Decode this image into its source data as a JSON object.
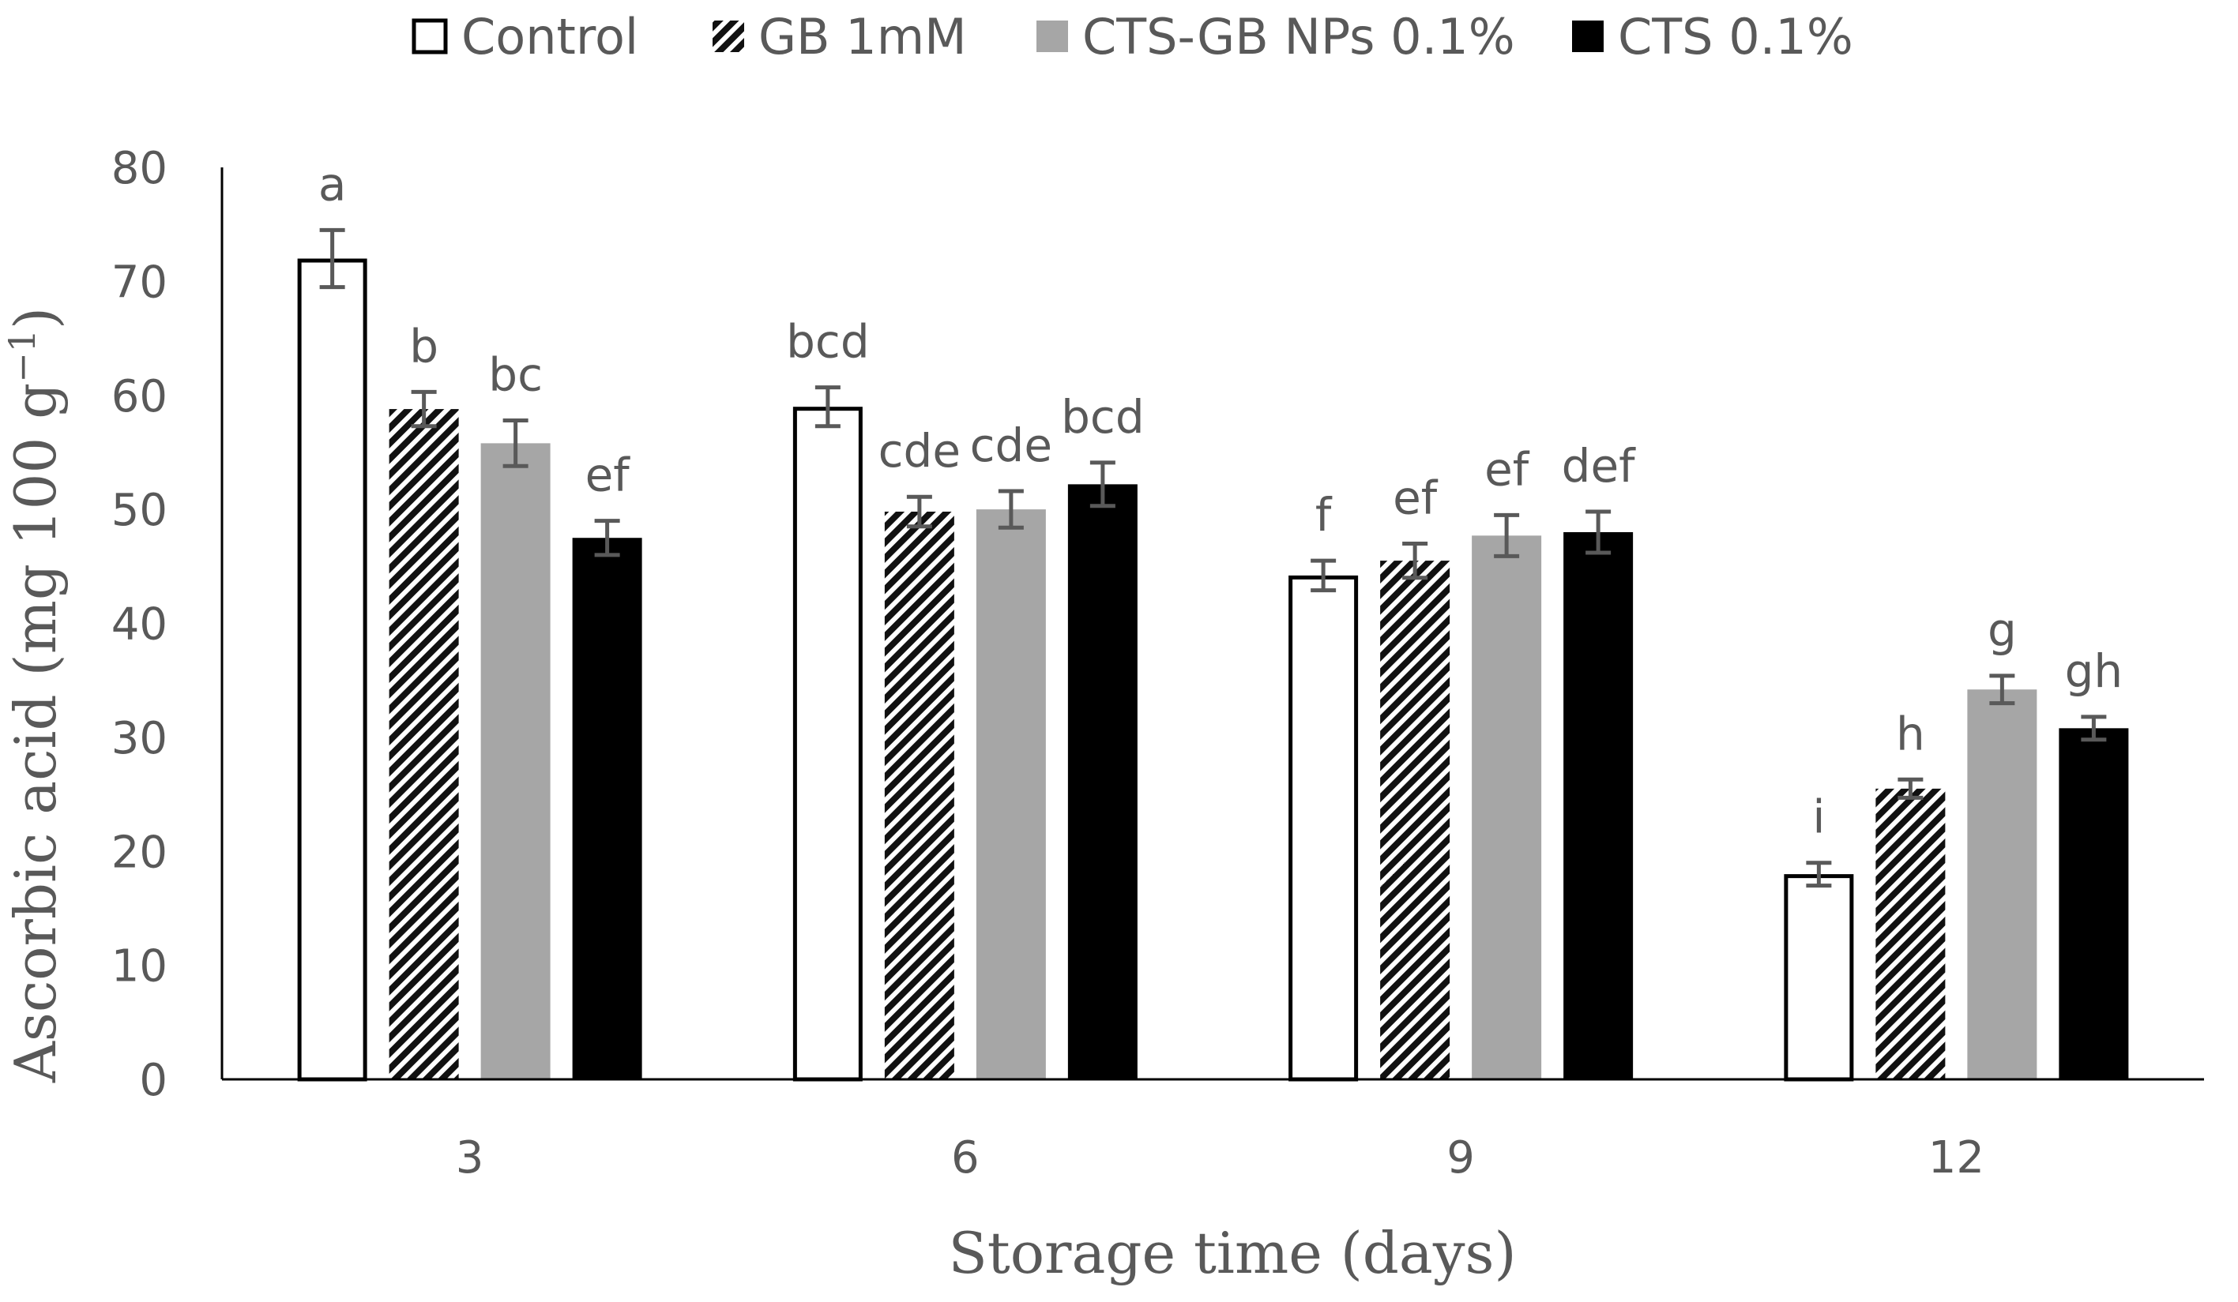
{
  "chart_data": {
    "type": "bar",
    "title": "",
    "xlabel": "Storage time (days)",
    "ylabel_main": "Ascorbic acid (mg  100 g",
    "ylabel_sup": "−1",
    "ylabel_close": ")",
    "ylim": [
      0,
      80
    ],
    "yticks": [
      "0",
      "10",
      "20",
      "30",
      "40",
      "50",
      "60",
      "70",
      "80"
    ],
    "categories": [
      "3",
      "6",
      "9",
      "12"
    ],
    "series": [
      {
        "name": "Control",
        "style": "white",
        "values": [
          72,
          59,
          44.2,
          18
        ],
        "errors": [
          2.5,
          1.7,
          1.3,
          1.0
        ],
        "letters": [
          "a",
          "bcd",
          "f",
          "i"
        ]
      },
      {
        "name": "GB 1mM",
        "style": "hatch",
        "values": [
          58.8,
          49.8,
          45.5,
          25.5
        ],
        "errors": [
          1.5,
          1.3,
          1.5,
          0.8
        ],
        "letters": [
          "b",
          "cde",
          "ef",
          "h"
        ]
      },
      {
        "name": "CTS-GB NPs 0.1%",
        "style": "gray",
        "values": [
          55.8,
          50,
          47.7,
          34.2
        ],
        "errors": [
          2.0,
          1.6,
          1.8,
          1.2
        ],
        "letters": [
          "bc",
          "cde",
          "ef",
          "g"
        ]
      },
      {
        "name": "CTS 0.1%",
        "style": "black",
        "values": [
          47.5,
          52.2,
          48,
          30.8
        ],
        "errors": [
          1.5,
          1.9,
          1.8,
          1.0
        ],
        "letters": [
          "ef",
          "bcd",
          "def",
          "gh"
        ]
      }
    ],
    "legend_position": "top",
    "colors": {
      "white": "#ffffff",
      "gray": "#a6a6a6",
      "black": "#000000",
      "axis": "#000000",
      "text": "#595959",
      "error": "#595959"
    }
  }
}
